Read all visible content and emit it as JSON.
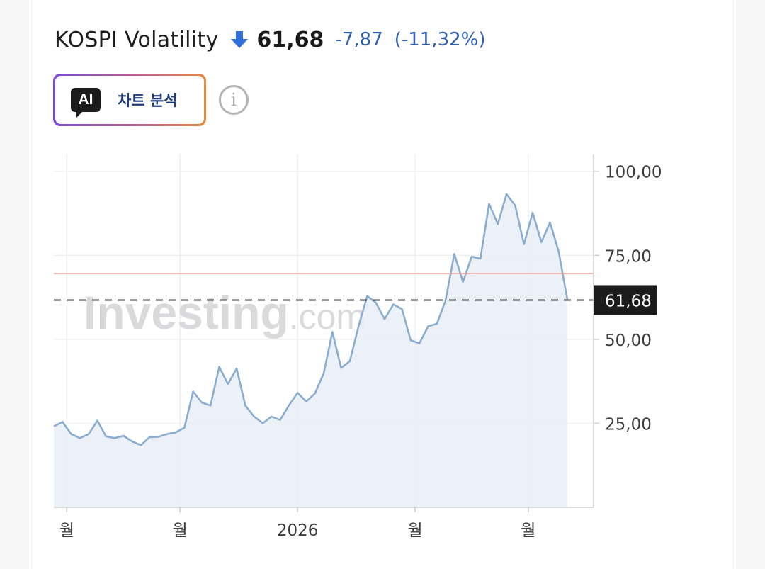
{
  "header": {
    "title": "KOSPI Volatility",
    "price": "61,68",
    "change": "-7,87",
    "change_pct": "(-11,32%)"
  },
  "ai_button": {
    "icon_text": "AI",
    "label": "차트 분석"
  },
  "colors": {
    "line": "#8badcf",
    "fill": "#e8eef6",
    "reference_line": "#ef9a95",
    "current_price_label_bg": "#1b1b1b",
    "down": "#2f6fdc"
  },
  "chart_data": {
    "type": "area",
    "title": "",
    "xlabel": "",
    "ylabel": "",
    "ylim": [
      0,
      105
    ],
    "yticks": [
      "100,00",
      "75,00",
      "50,00",
      "25,00"
    ],
    "ytick_values": [
      100,
      75,
      50,
      25
    ],
    "xtick_labels": [
      "월",
      "월",
      "2026",
      "월",
      "월"
    ],
    "x_index_range": [
      0,
      62
    ],
    "xtick_indices": [
      1.5,
      14.5,
      28,
      41.5,
      54.5
    ],
    "current_value": 61.68,
    "current_value_label": "61,68",
    "reference_value": 69.55,
    "grid": true,
    "watermark": "Investing.com",
    "series": [
      {
        "values": [
          24.1,
          25.4,
          21.8,
          20.6,
          21.8,
          25.8,
          21.1,
          20.6,
          21.3,
          19.6,
          18.5,
          20.9,
          21.0,
          21.8,
          22.3,
          23.7,
          34.5,
          31.2,
          30.3,
          41.8,
          36.7,
          41.3,
          30.3,
          27.0,
          25.0,
          27.0,
          26.0,
          30.3,
          34.1,
          31.5,
          33.9,
          39.9,
          52.2,
          41.5,
          43.5,
          53.9,
          62.9,
          60.9,
          56.0,
          60.4,
          59.0,
          49.7,
          48.8,
          53.9,
          54.6,
          61.6,
          75.4,
          67.1,
          74.6,
          74.0,
          90.3,
          84.3,
          93.2,
          89.8,
          78.3,
          87.7,
          78.9,
          84.8,
          76.1,
          61.7
        ]
      }
    ]
  }
}
